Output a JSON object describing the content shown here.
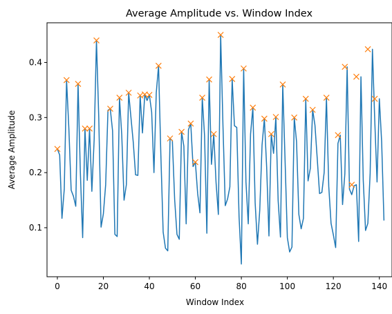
{
  "chart_data": {
    "type": "line",
    "title": "Average Amplitude vs. Window Index",
    "xlabel": "Window Index",
    "ylabel": "Average Amplitude",
    "xlim": [
      -4.5,
      145.5
    ],
    "ylim": [
      0.011,
      0.472
    ],
    "xticks": [
      0,
      20,
      40,
      60,
      80,
      100,
      120,
      140
    ],
    "yticks": [
      0.1,
      0.2,
      0.3,
      0.4
    ],
    "ytick_labels": [
      "0.1",
      "0.2",
      "0.3",
      "0.4"
    ],
    "grid": false,
    "legend": "none",
    "colors": {
      "line": "#1f77b4",
      "marker": "#ff7f0e"
    },
    "series": [
      {
        "values": [
          0.243,
          0.232,
          0.117,
          0.17,
          0.368,
          0.28,
          0.168,
          0.157,
          0.139,
          0.361,
          0.2,
          0.082,
          0.28,
          0.186,
          0.28,
          0.166,
          0.26,
          0.44,
          0.3,
          0.101,
          0.125,
          0.178,
          0.313,
          0.316,
          0.276,
          0.088,
          0.084,
          0.336,
          0.268,
          0.15,
          0.178,
          0.345,
          0.3,
          0.255,
          0.196,
          0.195,
          0.34,
          0.272,
          0.342,
          0.331,
          0.341,
          0.31,
          0.2,
          0.345,
          0.394,
          0.232,
          0.092,
          0.063,
          0.058,
          0.262,
          0.258,
          0.151,
          0.088,
          0.079,
          0.274,
          0.248,
          0.107,
          0.278,
          0.289,
          0.211,
          0.219,
          0.162,
          0.127,
          0.336,
          0.267,
          0.09,
          0.369,
          0.215,
          0.27,
          0.182,
          0.124,
          0.45,
          0.286,
          0.14,
          0.152,
          0.174,
          0.37,
          0.285,
          0.282,
          0.12,
          0.034,
          0.389,
          0.183,
          0.107,
          0.27,
          0.318,
          0.145,
          0.07,
          0.132,
          0.25,
          0.298,
          0.21,
          0.085,
          0.27,
          0.235,
          0.301,
          0.149,
          0.083,
          0.36,
          0.223,
          0.082,
          0.056,
          0.065,
          0.3,
          0.256,
          0.124,
          0.098,
          0.117,
          0.334,
          0.185,
          0.208,
          0.314,
          0.286,
          0.225,
          0.162,
          0.164,
          0.2,
          0.336,
          0.175,
          0.108,
          0.087,
          0.064,
          0.253,
          0.268,
          0.142,
          0.198,
          0.392,
          0.17,
          0.16,
          0.176,
          0.178,
          0.075,
          0.374,
          0.186,
          0.095,
          0.108,
          0.199,
          0.424,
          0.295,
          0.183,
          0.334,
          0.256,
          0.113
        ]
      }
    ],
    "peaks": {
      "x": [
        0,
        4,
        9,
        12,
        14,
        17,
        23,
        27,
        31,
        36,
        38,
        40,
        44,
        49,
        54,
        58,
        60,
        63,
        66,
        68,
        71,
        76,
        81,
        85,
        90,
        93,
        95,
        98,
        103,
        108,
        111,
        117,
        122,
        125,
        128,
        130,
        135,
        138
      ],
      "y": [
        0.243,
        0.368,
        0.361,
        0.28,
        0.28,
        0.44,
        0.316,
        0.336,
        0.345,
        0.34,
        0.342,
        0.341,
        0.394,
        0.262,
        0.274,
        0.289,
        0.219,
        0.336,
        0.369,
        0.27,
        0.45,
        0.37,
        0.389,
        0.318,
        0.298,
        0.27,
        0.301,
        0.36,
        0.3,
        0.334,
        0.314,
        0.336,
        0.268,
        0.392,
        0.178,
        0.374,
        0.424,
        0.334
      ]
    }
  }
}
